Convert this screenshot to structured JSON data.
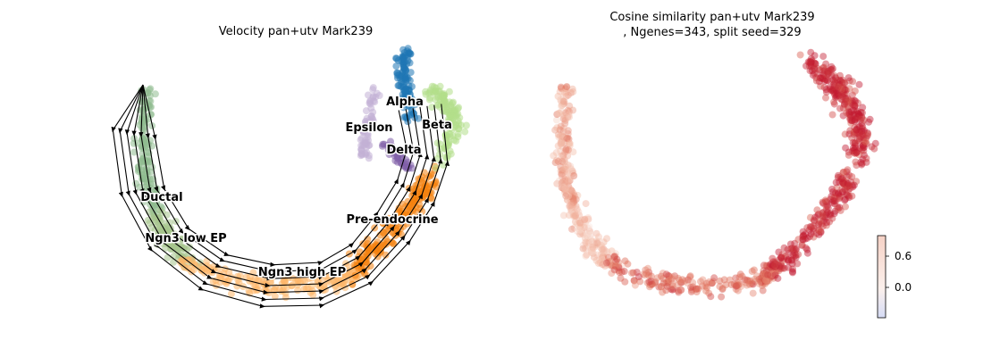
{
  "chart_data": [
    {
      "type": "scatter",
      "title": "Velocity pan+utv Mark239",
      "overlay": "velocity streamlines",
      "axes": "off",
      "clusters": [
        {
          "name": "Ductal",
          "color": "#8fbc8f"
        },
        {
          "name": "Ngn3 low EP",
          "color": "#a5c58c"
        },
        {
          "name": "Ngn3 high EP",
          "color": "#fdb76a"
        },
        {
          "name": "Pre-endocrine",
          "color": "#f4820f"
        },
        {
          "name": "Beta",
          "color": "#b2df8a"
        },
        {
          "name": "Alpha",
          "color": "#1f77b4"
        },
        {
          "name": "Delta",
          "color": "#7f5fa8"
        },
        {
          "name": "Epsilon",
          "color": "#c3b0d6"
        }
      ]
    },
    {
      "type": "scatter",
      "title_line1": "Cosine similarity pan+utv Mark239",
      "title_line2": ", Ngenes=343, split seed=329",
      "axes": "off",
      "colormap": [
        "#d6dcf5",
        "#fbf0ec",
        "#f3b9a4",
        "#de6a55",
        "#c0162e"
      ],
      "colorbar_ticks": [
        0.6,
        0.0
      ],
      "colorbar_tick_labels": [
        "0.6",
        "0.0"
      ]
    }
  ]
}
